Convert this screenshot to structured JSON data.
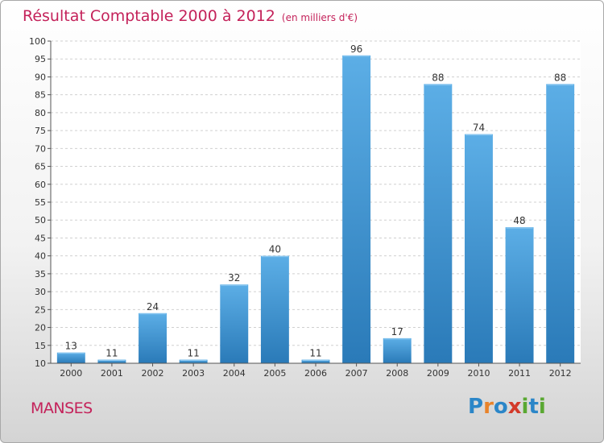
{
  "chart_data": {
    "type": "bar",
    "title": "Résultat Comptable 2000 à 2012",
    "subtitle": "(en milliers d'€)",
    "categories": [
      "2000",
      "2001",
      "2002",
      "2003",
      "2004",
      "2005",
      "2006",
      "2007",
      "2008",
      "2009",
      "2010",
      "2011",
      "2012"
    ],
    "values": [
      13,
      11,
      24,
      11,
      32,
      40,
      11,
      96,
      17,
      88,
      74,
      48,
      88
    ],
    "ylim": [
      10,
      100
    ],
    "yticks": [
      10,
      15,
      20,
      25,
      30,
      35,
      40,
      45,
      50,
      55,
      60,
      65,
      70,
      75,
      80,
      85,
      90,
      95,
      100
    ],
    "xlabel": "",
    "ylabel": "",
    "grid": true,
    "bar_color_top": "#5caee6",
    "bar_color_bottom": "#2a7ab8"
  },
  "commune": "MANSES",
  "logo": {
    "letters": [
      {
        "ch": "P",
        "color": "#2b86c8"
      },
      {
        "ch": "r",
        "color": "#e8832a"
      },
      {
        "ch": "o",
        "color": "#2b86c8"
      },
      {
        "ch": "x",
        "color": "#d33a2a"
      },
      {
        "ch": "i",
        "color": "#5aa832"
      },
      {
        "ch": "t",
        "color": "#2b86c8"
      },
      {
        "ch": "i",
        "color": "#5aa832"
      }
    ]
  }
}
